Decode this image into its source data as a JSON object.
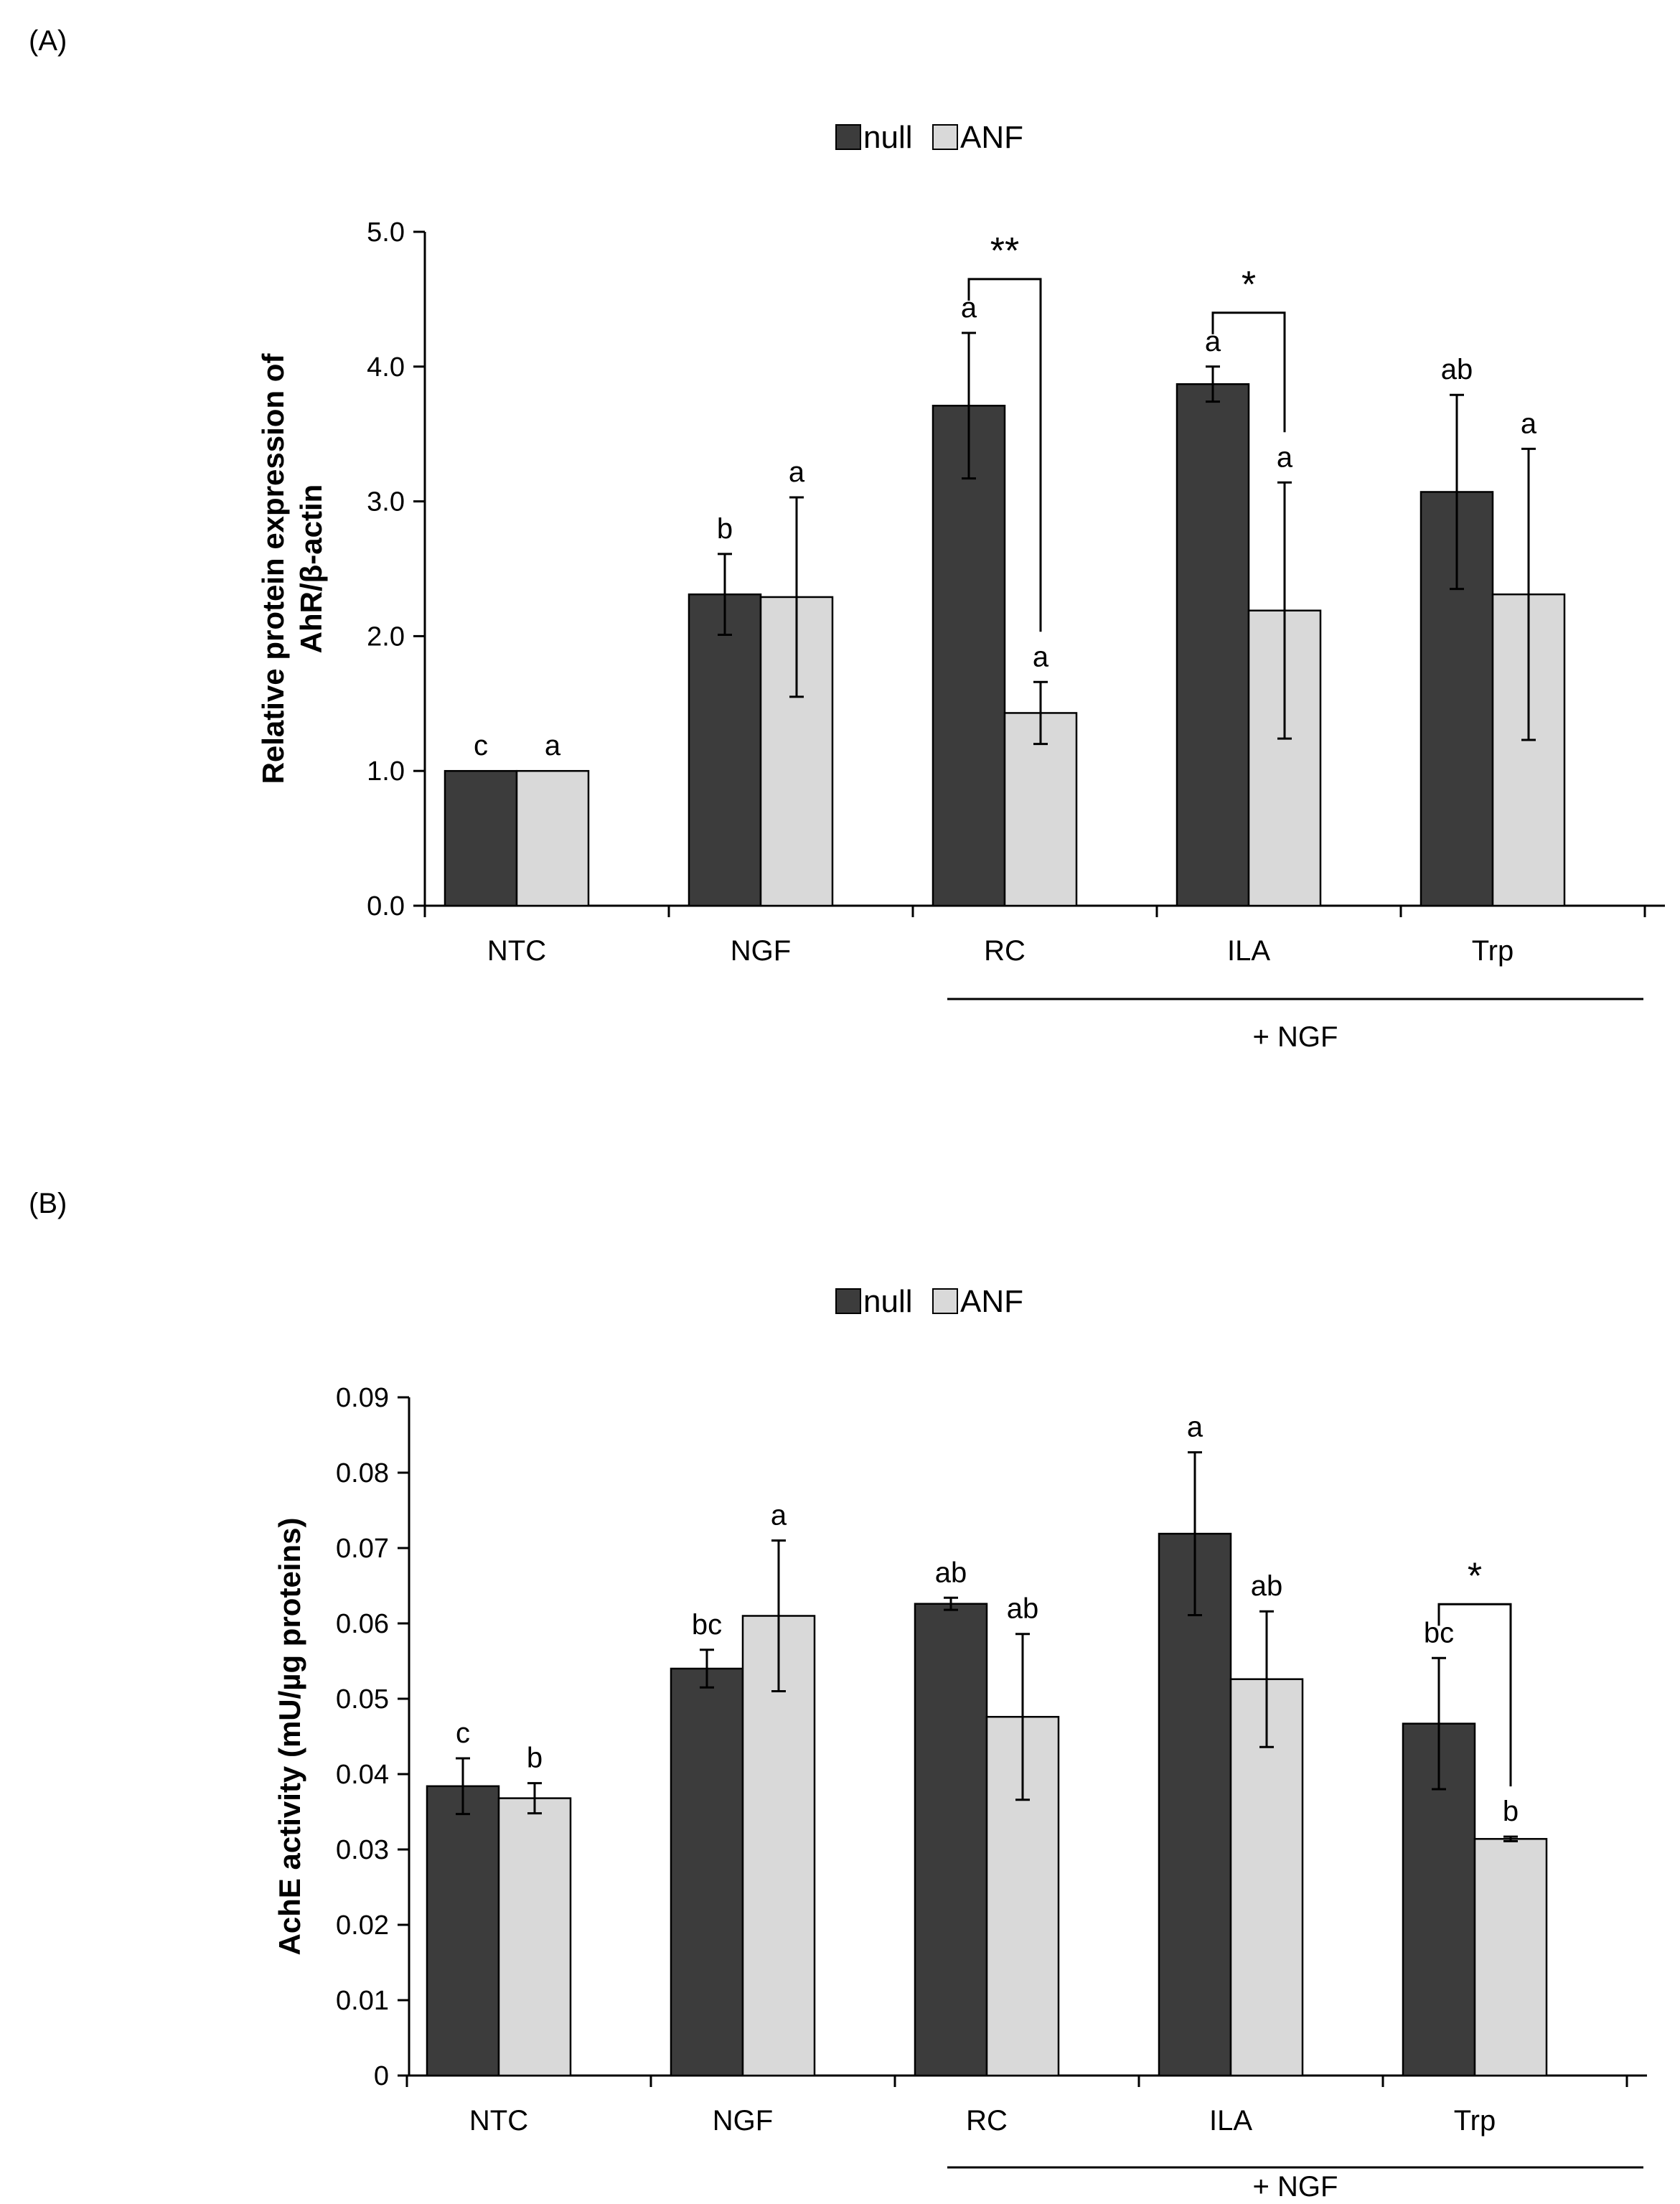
{
  "colors": {
    "null": "#3c3c3c",
    "ANF": "#d9d9d9",
    "axis": "#000000"
  },
  "chart_data": [
    {
      "panel_label": "(A)",
      "type": "bar",
      "title": "",
      "xlabel": "",
      "ylabel": "Relative protein expression of",
      "ylabel2": "AhR/β-actin",
      "ylim": [
        0,
        5
      ],
      "yticks": [
        0,
        1,
        2,
        3,
        4,
        5
      ],
      "ytick_labels": [
        "0.0",
        "1.0",
        "2.0",
        "3.0",
        "4.0",
        "5.0"
      ],
      "categories": [
        "NTC",
        "NGF",
        "RC",
        "ILA",
        "Trp"
      ],
      "group_label": "+ NGF",
      "legend": {
        "position": "top-center",
        "entries": [
          "null",
          "ANF"
        ]
      },
      "series": [
        {
          "name": "null",
          "values": [
            1.0,
            2.31,
            3.71,
            3.87,
            3.07
          ],
          "errors": [
            0.0,
            0.3,
            0.54,
            0.13,
            0.72
          ],
          "letters": [
            "c",
            "b",
            "a",
            "a",
            "ab"
          ]
        },
        {
          "name": "ANF",
          "values": [
            1.0,
            2.29,
            1.43,
            2.19,
            2.31
          ],
          "errors": [
            0.0,
            0.74,
            0.23,
            0.95,
            1.08
          ],
          "letters": [
            "a",
            "a",
            "a",
            "a",
            "a"
          ]
        }
      ],
      "significance": [
        {
          "category": "RC",
          "label": "**"
        },
        {
          "category": "ILA",
          "label": "*"
        }
      ]
    },
    {
      "panel_label": "(B)",
      "type": "bar",
      "title": "",
      "xlabel": "",
      "ylabel": "AchE activity (mU/µg proteins)",
      "ylim": [
        0,
        0.09
      ],
      "yticks": [
        0,
        0.01,
        0.02,
        0.03,
        0.04,
        0.05,
        0.06,
        0.07,
        0.08,
        0.09
      ],
      "ytick_labels": [
        "0",
        "0.01",
        "0.02",
        "0.03",
        "0.04",
        "0.05",
        "0.06",
        "0.07",
        "0.08",
        "0.09"
      ],
      "categories": [
        "NTC",
        "NGF",
        "RC",
        "ILA",
        "Trp"
      ],
      "group_label": "+ NGF",
      "legend": {
        "position": "top-center",
        "entries": [
          "null",
          "ANF"
        ]
      },
      "series": [
        {
          "name": "null",
          "values": [
            0.0384,
            0.054,
            0.0626,
            0.0719,
            0.0467
          ],
          "errors": [
            0.0037,
            0.0025,
            0.0008,
            0.0108,
            0.0087
          ],
          "letters": [
            "c",
            "bc",
            "ab",
            "a",
            "bc"
          ]
        },
        {
          "name": "ANF",
          "values": [
            0.0368,
            0.061,
            0.0476,
            0.0526,
            0.0314
          ],
          "errors": [
            0.002,
            0.01,
            0.011,
            0.009,
            0.0003
          ],
          "letters": [
            "b",
            "a",
            "ab",
            "ab",
            "b"
          ]
        }
      ],
      "significance": [
        {
          "category": "Trp",
          "label": "*"
        }
      ]
    }
  ]
}
